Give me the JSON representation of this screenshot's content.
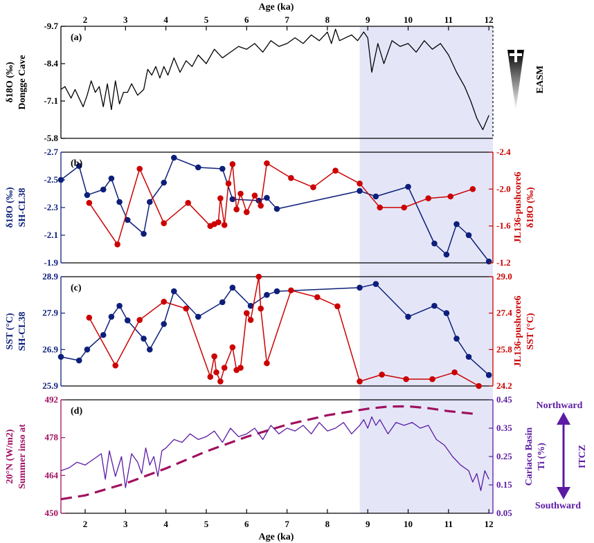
{
  "figure": {
    "xlabel": "Age (ka)",
    "xlim": [
      1.4,
      12.1
    ],
    "xticks": [
      2,
      3,
      4,
      5,
      6,
      7,
      8,
      9,
      10,
      11,
      12
    ],
    "shade_range": [
      8.8,
      12.1
    ],
    "shade_color": "#e4e6f8",
    "side_annotations": {
      "easm": "EASM",
      "northward": "Northward",
      "southward": "Southward",
      "itcz": "ITCZ"
    }
  },
  "chart_data": [
    {
      "panel_label": "(a)",
      "type": "line",
      "left_axis": {
        "label_line1": "δ18O (‰)",
        "label_line2": "Dongge Cave",
        "reversed": true,
        "ylim": [
          -9.7,
          -5.8
        ],
        "ticks": [
          -9.7,
          -8.4,
          -7.1,
          -5.8
        ],
        "color": "#000000"
      },
      "series": [
        {
          "name": "Dongge Cave δ18O",
          "color": "#000000",
          "x": [
            1.4,
            1.5,
            1.65,
            1.75,
            1.85,
            1.95,
            2.05,
            2.15,
            2.25,
            2.35,
            2.45,
            2.55,
            2.65,
            2.75,
            2.85,
            2.95,
            3.05,
            3.15,
            3.3,
            3.45,
            3.55,
            3.65,
            3.75,
            3.85,
            3.95,
            4.05,
            4.2,
            4.35,
            4.5,
            4.65,
            4.8,
            5.0,
            5.2,
            5.4,
            5.6,
            5.8,
            6.0,
            6.2,
            6.4,
            6.6,
            6.8,
            7.0,
            7.2,
            7.4,
            7.6,
            7.8,
            8.0,
            8.1,
            8.2,
            8.3,
            8.45,
            8.6,
            8.75,
            8.9,
            9.0,
            9.1,
            9.25,
            9.4,
            9.6,
            9.8,
            10.0,
            10.2,
            10.4,
            10.6,
            10.8,
            11.0,
            11.2,
            11.4,
            11.55,
            11.7,
            11.85,
            12.0
          ],
          "y": [
            -7.5,
            -7.6,
            -7.2,
            -7.5,
            -7.2,
            -6.9,
            -7.3,
            -7.8,
            -7.4,
            -7.6,
            -6.9,
            -7.7,
            -6.8,
            -7.8,
            -7.0,
            -7.4,
            -7.4,
            -7.7,
            -7.3,
            -7.5,
            -8.2,
            -8.0,
            -8.3,
            -7.9,
            -8.3,
            -8.0,
            -8.6,
            -8.1,
            -8.5,
            -8.3,
            -8.7,
            -8.4,
            -8.9,
            -8.6,
            -8.8,
            -9.0,
            -8.9,
            -9.1,
            -8.8,
            -9.2,
            -9.0,
            -9.1,
            -9.3,
            -9.1,
            -9.4,
            -9.2,
            -9.5,
            -9.1,
            -9.6,
            -9.2,
            -9.3,
            -9.4,
            -9.2,
            -9.5,
            -9.3,
            -8.1,
            -9.1,
            -8.4,
            -9.2,
            -9.0,
            -9.1,
            -8.8,
            -9.2,
            -8.9,
            -9.1,
            -8.7,
            -8.1,
            -7.6,
            -7.1,
            -6.5,
            -6.1,
            -6.6
          ]
        }
      ]
    },
    {
      "panel_label": "(b)",
      "type": "line",
      "left_axis": {
        "label_line1": "δ18O (‰)",
        "label_line2": "SH-CL38",
        "reversed": true,
        "ylim": [
          -2.7,
          -1.9
        ],
        "ticks": [
          -2.7,
          -2.5,
          -2.3,
          -2.1,
          -1.9
        ],
        "color": "#0d1f7a"
      },
      "right_axis": {
        "label_line1": "JL136-pushcore6",
        "label_line2": "δ18O (‰)",
        "reversed": true,
        "ylim": [
          -2.4,
          -1.2
        ],
        "ticks": [
          -2.4,
          -2.0,
          -1.6,
          -1.2
        ],
        "color": "#cc0000"
      },
      "series": [
        {
          "name": "SH-CL38 δ18O",
          "axis": "left",
          "color": "#0d1f7a",
          "x": [
            1.4,
            1.85,
            2.05,
            2.45,
            2.65,
            2.85,
            3.05,
            3.45,
            3.6,
            3.95,
            4.2,
            4.8,
            5.4,
            5.65,
            6.3,
            6.5,
            6.75,
            8.8,
            9.2,
            10.0,
            10.65,
            10.95,
            11.2,
            11.5,
            12.0
          ],
          "values": [
            -2.5,
            -2.6,
            -2.39,
            -2.43,
            -2.51,
            -2.34,
            -2.21,
            -2.11,
            -2.34,
            -2.48,
            -2.66,
            -2.59,
            -2.58,
            -2.36,
            -2.35,
            -2.37,
            -2.29,
            -2.42,
            -2.38,
            -2.45,
            -2.04,
            -1.96,
            -2.18,
            -2.1,
            -1.91
          ]
        },
        {
          "name": "JL136-pushcore6 δ18O",
          "axis": "right",
          "color": "#cc0000",
          "x": [
            2.1,
            2.8,
            3.35,
            3.95,
            4.55,
            5.1,
            5.2,
            5.3,
            5.35,
            5.45,
            5.55,
            5.65,
            5.75,
            5.85,
            6.0,
            6.2,
            6.35,
            6.5,
            7.1,
            7.65,
            8.2,
            8.8,
            9.3,
            9.9,
            10.5,
            11.05,
            11.6
          ],
          "values": [
            -1.85,
            -1.4,
            -2.22,
            -1.63,
            -1.85,
            -1.6,
            -1.62,
            -1.64,
            -1.9,
            -1.61,
            -2.06,
            -2.27,
            -1.78,
            -1.95,
            -1.75,
            -1.93,
            -1.82,
            -2.28,
            -2.12,
            -2.02,
            -2.2,
            -2.06,
            -1.8,
            -1.8,
            -1.9,
            -1.92,
            -2.0
          ]
        }
      ]
    },
    {
      "panel_label": "(c)",
      "type": "line",
      "left_axis": {
        "label_line1": "SST (°C)",
        "label_line2": "SH-CL38",
        "reversed": false,
        "ylim": [
          25.9,
          28.9
        ],
        "ticks": [
          25.9,
          26.9,
          27.9,
          28.9
        ],
        "color": "#0d1f7a"
      },
      "right_axis": {
        "label_line1": "JL136-pushcore6",
        "label_line2": "SST (°C)",
        "reversed": false,
        "ylim": [
          24.2,
          29.0
        ],
        "ticks": [
          24.2,
          25.8,
          27.4,
          29.0
        ],
        "color": "#cc0000"
      },
      "series": [
        {
          "name": "SH-CL38 SST",
          "axis": "left",
          "color": "#0d1f7a",
          "x": [
            1.4,
            1.85,
            2.05,
            2.45,
            2.65,
            2.85,
            3.05,
            3.45,
            3.6,
            3.95,
            4.2,
            4.8,
            5.4,
            5.65,
            6.1,
            6.5,
            6.75,
            8.8,
            9.2,
            10.0,
            10.65,
            10.95,
            11.2,
            11.5,
            12.0
          ],
          "values": [
            26.7,
            26.6,
            26.9,
            27.3,
            27.8,
            28.1,
            27.7,
            27.2,
            26.9,
            27.6,
            28.5,
            27.8,
            28.2,
            28.6,
            28.1,
            28.4,
            28.5,
            28.6,
            28.7,
            27.8,
            28.1,
            27.9,
            27.2,
            26.7,
            26.2
          ]
        },
        {
          "name": "JL136-pushcore6 SST",
          "axis": "right",
          "color": "#cc0000",
          "x": [
            2.1,
            2.75,
            3.35,
            3.95,
            4.5,
            5.1,
            5.2,
            5.25,
            5.35,
            5.45,
            5.65,
            5.75,
            5.85,
            6.0,
            6.1,
            6.3,
            6.35,
            6.5,
            7.1,
            7.75,
            8.25,
            8.8,
            9.35,
            9.95,
            10.6,
            11.15,
            11.75
          ],
          "values": [
            27.2,
            25.1,
            27.1,
            27.9,
            27.6,
            24.6,
            25.5,
            24.8,
            24.4,
            25.0,
            25.9,
            24.9,
            25.0,
            27.4,
            27.1,
            29.0,
            27.6,
            25.2,
            28.4,
            28.1,
            27.7,
            24.4,
            24.7,
            24.5,
            24.5,
            24.8,
            24.2
          ]
        }
      ]
    },
    {
      "panel_label": "(d)",
      "type": "line",
      "left_axis": {
        "label_line1": "20°N (W/m2)",
        "label_line2": "Summer inso at",
        "reversed": false,
        "ylim": [
          450,
          492
        ],
        "ticks": [
          450,
          464,
          478,
          492
        ],
        "color": "#a01060"
      },
      "right_axis": {
        "label_line1": "Cariaco Basin",
        "label_line2": "Ti (%)",
        "reversed": false,
        "ylim": [
          0.05,
          0.45
        ],
        "ticks": [
          0.05,
          0.15,
          0.25,
          0.35,
          0.45
        ],
        "color": "#5b1aa3"
      },
      "series": [
        {
          "name": "Summer insolation 20°N",
          "axis": "left",
          "style": "dashed",
          "color": "#a01060",
          "x": [
            1.4,
            2.0,
            3.0,
            4.0,
            5.0,
            6.0,
            7.0,
            8.0,
            9.0,
            9.5,
            10.0,
            10.5,
            11.0,
            11.7
          ],
          "values": [
            455.2,
            456.6,
            461.0,
            466.6,
            472.9,
            478.3,
            482.8,
            486.3,
            488.7,
            489.5,
            489.6,
            488.9,
            487.8,
            486.7
          ]
        },
        {
          "name": "Cariaco Basin Ti",
          "axis": "right",
          "color": "#5b1aa3",
          "x": [
            1.4,
            1.6,
            1.8,
            2.0,
            2.2,
            2.4,
            2.5,
            2.6,
            2.75,
            2.9,
            3.0,
            3.15,
            3.3,
            3.4,
            3.5,
            3.6,
            3.7,
            3.8,
            3.9,
            4.0,
            4.2,
            4.4,
            4.6,
            4.8,
            5.0,
            5.2,
            5.4,
            5.6,
            5.8,
            6.0,
            6.2,
            6.4,
            6.6,
            6.8,
            7.0,
            7.2,
            7.4,
            7.6,
            7.8,
            8.0,
            8.2,
            8.4,
            8.6,
            8.8,
            8.9,
            9.0,
            9.1,
            9.2,
            9.3,
            9.5,
            9.7,
            9.9,
            10.1,
            10.3,
            10.5,
            10.7,
            10.9,
            11.1,
            11.3,
            11.5,
            11.6,
            11.7,
            11.8,
            11.9,
            12.0
          ],
          "values": [
            0.2,
            0.21,
            0.23,
            0.22,
            0.24,
            0.26,
            0.17,
            0.27,
            0.18,
            0.25,
            0.14,
            0.26,
            0.23,
            0.19,
            0.28,
            0.22,
            0.25,
            0.18,
            0.27,
            0.28,
            0.31,
            0.3,
            0.33,
            0.31,
            0.32,
            0.34,
            0.3,
            0.35,
            0.32,
            0.33,
            0.35,
            0.31,
            0.36,
            0.33,
            0.35,
            0.34,
            0.36,
            0.33,
            0.37,
            0.34,
            0.35,
            0.37,
            0.33,
            0.36,
            0.38,
            0.35,
            0.39,
            0.36,
            0.38,
            0.33,
            0.37,
            0.36,
            0.37,
            0.35,
            0.36,
            0.31,
            0.29,
            0.25,
            0.22,
            0.2,
            0.16,
            0.19,
            0.13,
            0.2,
            0.17
          ]
        }
      ]
    }
  ]
}
